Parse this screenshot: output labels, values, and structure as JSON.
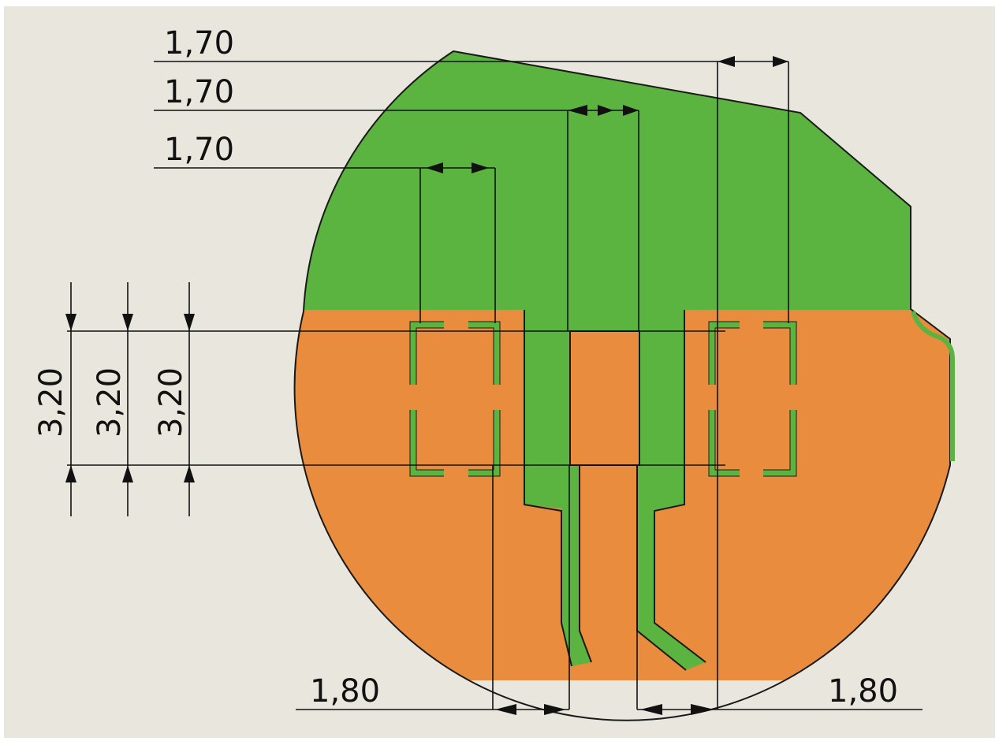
{
  "colors": {
    "background": "#e9e7dd",
    "green": "#5ab43f",
    "orange": "#ea8c3d",
    "line": "#111111",
    "stroke": "#1a1a1a"
  },
  "dimensions": {
    "top_1": "1,70",
    "top_2": "1,70",
    "top_3": "1,70",
    "left_1": "3,20",
    "left_2": "3,20",
    "left_3": "3,20",
    "bottom_left": "1,80",
    "bottom_right": "1,80"
  }
}
